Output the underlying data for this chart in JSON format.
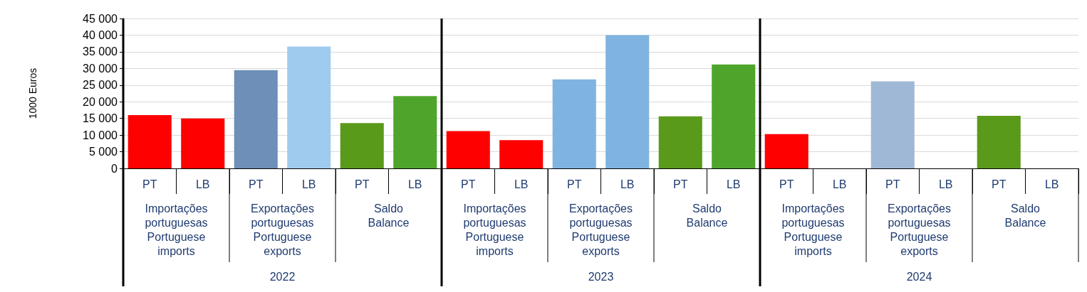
{
  "chart_data": {
    "type": "bar",
    "ylabel": "1000 Euros",
    "categories": [
      "PT",
      "LB",
      "PT",
      "LB",
      "PT",
      "LB",
      "PT",
      "LB",
      "PT",
      "LB",
      "PT",
      "LB",
      "PT",
      "LB",
      "PT",
      "LB",
      "PT",
      "LB"
    ],
    "values": [
      16000,
      15000,
      29500,
      36600,
      13600,
      21700,
      11200,
      8500,
      26700,
      40000,
      15600,
      31200,
      10300,
      null,
      26100,
      null,
      15800,
      null
    ],
    "colors": [
      "#ff0000",
      "#ff0000",
      "#6d8fb8",
      "#9fcbee",
      "#5a9a1a",
      "#4fa52c",
      "#ff0000",
      "#ff0000",
      "#7fb3e0",
      "#7fb3e0",
      "#5a9a1a",
      "#4fa52c",
      "#ff0000",
      "#ff0000",
      "#9fb8d6",
      "#9fcbee",
      "#5a9a1a",
      "#4fa52c"
    ],
    "annotations": [
      "Importações\nportuguesas\nPortuguese\nimports",
      "Exportações\nportuguesas\nPortuguese\nexports",
      "Saldo\nBalance",
      "Importações\nportuguesas\nPortuguese\nimports",
      "Exportações\nportuguesas\nPortuguese\nexports",
      "Saldo\nBalance",
      "Importações\nportuguesas\nPortuguese\nimports",
      "Exportações\nportuguesas\nPortuguese\nexports",
      "Saldo\nBalance",
      "2022",
      "2023",
      "2024"
    ],
    "ylim": [
      0,
      45000
    ],
    "yticks": [
      {
        "value": 0,
        "label": "0"
      },
      {
        "value": 5000,
        "label": "5 000"
      },
      {
        "value": 10000,
        "label": "10 000"
      },
      {
        "value": 15000,
        "label": "15 000"
      },
      {
        "value": 20000,
        "label": "20 000"
      },
      {
        "value": 25000,
        "label": "25 000"
      },
      {
        "value": 30000,
        "label": "30 000"
      },
      {
        "value": 35000,
        "label": "35 000"
      },
      {
        "value": 40000,
        "label": "40 000"
      },
      {
        "value": 45000,
        "label": "45 000"
      }
    ],
    "grid": "y"
  }
}
